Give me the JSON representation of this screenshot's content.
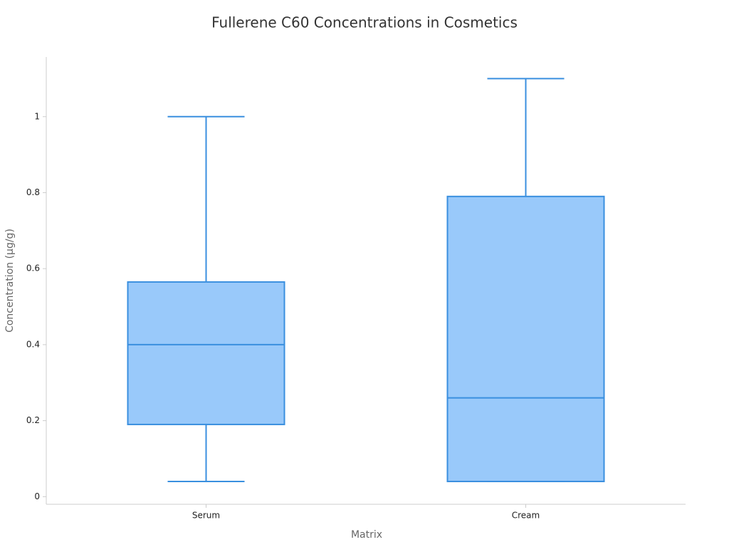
{
  "chart_data": {
    "type": "box",
    "title": "Fullerene C60 Concentrations in Cosmetics",
    "x_label": "Matrix",
    "y_label": "Concentration (µg/g)",
    "categories": [
      "Serum",
      "Cream"
    ],
    "boxes": [
      {
        "min": 0.04,
        "q1": 0.19,
        "median": 0.4,
        "q3": 0.565,
        "max": 1.0
      },
      {
        "min": 0.04,
        "q1": 0.04,
        "median": 0.26,
        "q3": 0.79,
        "max": 1.1
      }
    ],
    "color": "#99c9fa",
    "edge_color": "#3a8fdf",
    "ylim": [
      -0.02,
      1.157
    ],
    "yticks": [
      0,
      0.2,
      0.4,
      0.6,
      0.8,
      1
    ]
  }
}
